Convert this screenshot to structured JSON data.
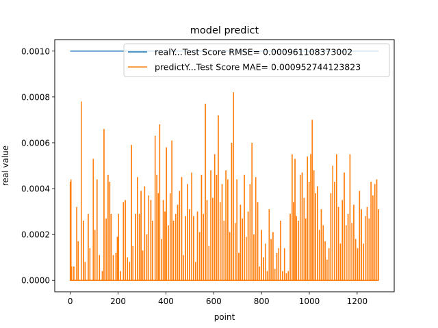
{
  "chart_data": {
    "type": "line",
    "title": "model predict",
    "xlabel": "point",
    "ylabel": "real value",
    "xlim": [
      -65,
      1355
    ],
    "ylim": [
      -5e-05,
      0.00105
    ],
    "x_ticks": [
      0,
      200,
      400,
      600,
      800,
      1000,
      1200
    ],
    "x_tick_labels": [
      "0",
      "200",
      "400",
      "600",
      "800",
      "1000",
      "1200"
    ],
    "y_ticks": [
      0,
      0.0002,
      0.0004,
      0.0006,
      0.0008,
      0.001
    ],
    "y_tick_labels": [
      "0.0000",
      "0.0002",
      "0.0004",
      "0.0006",
      "0.0008",
      "0.0010"
    ],
    "grid": false,
    "legend_position": "top-right",
    "series": [
      {
        "name": "realY...Test Score RMSE= 0.000961108373002",
        "color": "#1f77b4",
        "x": [
          0,
          1290
        ],
        "values": [
          0.001,
          0.001
        ]
      },
      {
        "name": "predictY...Test Score MAE= 0.000952744123823",
        "color": "#ff7f0e",
        "type": "spikes",
        "baseline": 0,
        "x_range": [
          0,
          1290
        ],
        "spikes": [
          [
            0,
            0.00043
          ],
          [
            3,
            0.00044
          ],
          [
            6,
            6e-05
          ],
          [
            15,
            6e-05
          ],
          [
            27,
            0.00032
          ],
          [
            33,
            0.00017
          ],
          [
            46,
            0.00078
          ],
          [
            55,
            0.00026
          ],
          [
            62,
            8e-05
          ],
          [
            75,
            0.00029
          ],
          [
            82,
            0.00014
          ],
          [
            96,
            0.00053
          ],
          [
            103,
            0.00022
          ],
          [
            112,
            0.00044
          ],
          [
            122,
            0.00011
          ],
          [
            134,
            4e-05
          ],
          [
            141,
            0.00066
          ],
          [
            150,
            0.00027
          ],
          [
            158,
            0.00046
          ],
          [
            165,
            0.00043
          ],
          [
            171,
            0.00029
          ],
          [
            180,
            0.00011
          ],
          [
            191,
            0.00012
          ],
          [
            197,
            0.00019
          ],
          [
            202,
            0.00029
          ],
          [
            210,
            4e-05
          ],
          [
            222,
            0.00034
          ],
          [
            230,
            0.00035
          ],
          [
            239,
            0.0001
          ],
          [
            248,
            8e-05
          ],
          [
            256,
            0.00059
          ],
          [
            262,
            0.00015
          ],
          [
            273,
            0.00029
          ],
          [
            281,
            0.00045
          ],
          [
            289,
            0.00029
          ],
          [
            296,
            0.00039
          ],
          [
            303,
            0.00013
          ],
          [
            311,
            0.00041
          ],
          [
            320,
            0.0002
          ],
          [
            328,
            0.00037
          ],
          [
            337,
            0.00035
          ],
          [
            344,
            0.00026
          ],
          [
            355,
            0.00063
          ],
          [
            362,
            0.00046
          ],
          [
            368,
            0.00038
          ],
          [
            374,
            0.00068
          ],
          [
            381,
            0.00018
          ],
          [
            389,
            0.00035
          ],
          [
            396,
            0.0003
          ],
          [
            402,
            0.00058
          ],
          [
            410,
            0.00024
          ],
          [
            418,
            0.00038
          ],
          [
            425,
            0.00061
          ],
          [
            432,
            0.00026
          ],
          [
            441,
            0.00029
          ],
          [
            449,
            0.00033
          ],
          [
            457,
            0.00039
          ],
          [
            466,
            0.00045
          ],
          [
            474,
            0.00011
          ],
          [
            482,
            0.00028
          ],
          [
            490,
            0.00042
          ],
          [
            499,
            0.00031
          ],
          [
            508,
            0.00047
          ],
          [
            516,
            0.00028
          ],
          [
            524,
            8e-05
          ],
          [
            532,
            0.0003
          ],
          [
            541,
            0.00021
          ],
          [
            549,
            0.00046
          ],
          [
            557,
            0.00029
          ],
          [
            565,
            0.00077
          ],
          [
            572,
            0.00035
          ],
          [
            580,
            0.00015
          ],
          [
            588,
            0.00048
          ],
          [
            596,
            0.00036
          ],
          [
            604,
            0.00055
          ],
          [
            612,
            0.00046
          ],
          [
            619,
            0.00072
          ],
          [
            627,
            0.00034
          ],
          [
            635,
            0.00042
          ],
          [
            643,
            0.00026
          ],
          [
            651,
            0.00048
          ],
          [
            659,
            0.00044
          ],
          [
            667,
            0.00021
          ],
          [
            675,
            0.0006
          ],
          [
            683,
            0.00082
          ],
          [
            690,
            0.00025
          ],
          [
            697,
            0.00044
          ],
          [
            705,
            0.00012
          ],
          [
            712,
            0.00033
          ],
          [
            720,
            0.00027
          ],
          [
            728,
            0.00046
          ],
          [
            736,
            0.00019
          ],
          [
            744,
            0.0003
          ],
          [
            752,
            0.00042
          ],
          [
            760,
            0.0006
          ],
          [
            768,
            0.0002
          ],
          [
            776,
            0.00045
          ],
          [
            784,
            0.00034
          ],
          [
            792,
            6e-05
          ],
          [
            800,
            0.00022
          ],
          [
            808,
            0.0001
          ],
          [
            816,
            0.00016
          ],
          [
            824,
            4e-05
          ],
          [
            832,
            0.00031
          ],
          [
            840,
            0.00018
          ],
          [
            848,
            0.00021
          ],
          [
            856,
            5e-05
          ],
          [
            864,
            0.00012
          ],
          [
            872,
            0.00014
          ],
          [
            880,
            0.00026
          ],
          [
            888,
            4e-05
          ],
          [
            896,
            0.00014
          ],
          [
            904,
            3e-05
          ],
          [
            912,
            4e-05
          ],
          [
            920,
            0.00029
          ],
          [
            928,
            0.00055
          ],
          [
            934,
            0.00034
          ],
          [
            940,
            0.00053
          ],
          [
            946,
            0.00028
          ],
          [
            954,
            0.00026
          ],
          [
            962,
            0.00046
          ],
          [
            970,
            0.00047
          ],
          [
            978,
            0.00036
          ],
          [
            985,
            0.00027
          ],
          [
            992,
            0.00054
          ],
          [
            999,
            0.00043
          ],
          [
            1006,
            0.00055
          ],
          [
            1012,
            0.0007
          ],
          [
            1019,
            0.00048
          ],
          [
            1026,
            0.00038
          ],
          [
            1034,
            0.00041
          ],
          [
            1042,
            0.00022
          ],
          [
            1050,
            0.00031
          ],
          [
            1058,
            0.00024
          ],
          [
            1066,
            0.00017
          ],
          [
            1074,
            9e-05
          ],
          [
            1082,
            0.00014
          ],
          [
            1090,
            0.00038
          ],
          [
            1098,
            0.0005
          ],
          [
            1106,
            0.00043
          ],
          [
            1114,
            0.00055
          ],
          [
            1122,
            0.00032
          ],
          [
            1130,
            0.00016
          ],
          [
            1138,
            0.00035
          ],
          [
            1146,
            0.00047
          ],
          [
            1154,
            0.00024
          ],
          [
            1162,
            0.00029
          ],
          [
            1170,
            0.00055
          ],
          [
            1178,
            0.00025
          ],
          [
            1186,
            0.00033
          ],
          [
            1194,
            0.00018
          ],
          [
            1202,
            0.00014
          ],
          [
            1210,
            0.00039
          ],
          [
            1218,
            0.00031
          ],
          [
            1226,
            0.00016
          ],
          [
            1234,
            0.00028
          ],
          [
            1242,
            0.00032
          ],
          [
            1250,
            0.00027
          ],
          [
            1258,
            0.00043
          ],
          [
            1266,
            0.00037
          ],
          [
            1274,
            0.00042
          ],
          [
            1282,
            0.00044
          ],
          [
            1289,
            0.00031
          ]
        ]
      }
    ]
  }
}
